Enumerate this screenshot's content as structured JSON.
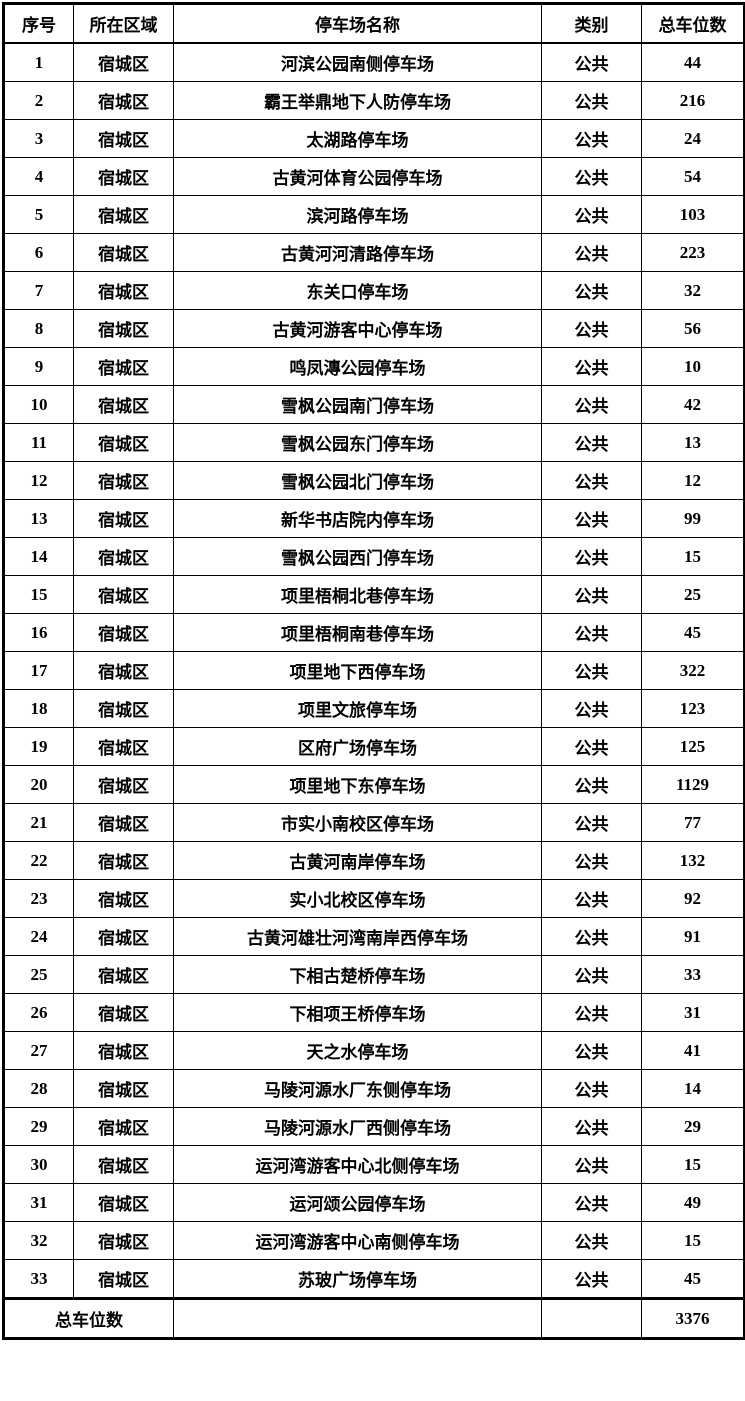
{
  "table": {
    "columns": [
      "序号",
      "所在区域",
      "停车场名称",
      "类别",
      "总车位数"
    ],
    "rows": [
      {
        "no": "1",
        "district": "宿城区",
        "name": "河滨公园南侧停车场",
        "category": "公共",
        "spaces": "44"
      },
      {
        "no": "2",
        "district": "宿城区",
        "name": "霸王举鼎地下人防停车场",
        "category": "公共",
        "spaces": "216"
      },
      {
        "no": "3",
        "district": "宿城区",
        "name": "太湖路停车场",
        "category": "公共",
        "spaces": "24"
      },
      {
        "no": "4",
        "district": "宿城区",
        "name": "古黄河体育公园停车场",
        "category": "公共",
        "spaces": "54"
      },
      {
        "no": "5",
        "district": "宿城区",
        "name": "滨河路停车场",
        "category": "公共",
        "spaces": "103"
      },
      {
        "no": "6",
        "district": "宿城区",
        "name": "古黄河河清路停车场",
        "category": "公共",
        "spaces": "223"
      },
      {
        "no": "7",
        "district": "宿城区",
        "name": "东关口停车场",
        "category": "公共",
        "spaces": "32"
      },
      {
        "no": "8",
        "district": "宿城区",
        "name": "古黄河游客中心停车场",
        "category": "公共",
        "spaces": "56"
      },
      {
        "no": "9",
        "district": "宿城区",
        "name": "鸣凤漙公园停车场",
        "category": "公共",
        "spaces": "10"
      },
      {
        "no": "10",
        "district": "宿城区",
        "name": "雪枫公园南门停车场",
        "category": "公共",
        "spaces": "42"
      },
      {
        "no": "11",
        "district": "宿城区",
        "name": "雪枫公园东门停车场",
        "category": "公共",
        "spaces": "13"
      },
      {
        "no": "12",
        "district": "宿城区",
        "name": "雪枫公园北门停车场",
        "category": "公共",
        "spaces": "12"
      },
      {
        "no": "13",
        "district": "宿城区",
        "name": "新华书店院内停车场",
        "category": "公共",
        "spaces": "99"
      },
      {
        "no": "14",
        "district": "宿城区",
        "name": "雪枫公园西门停车场",
        "category": "公共",
        "spaces": "15"
      },
      {
        "no": "15",
        "district": "宿城区",
        "name": "项里梧桐北巷停车场",
        "category": "公共",
        "spaces": "25"
      },
      {
        "no": "16",
        "district": "宿城区",
        "name": "项里梧桐南巷停车场",
        "category": "公共",
        "spaces": "45"
      },
      {
        "no": "17",
        "district": "宿城区",
        "name": "项里地下西停车场",
        "category": "公共",
        "spaces": "322"
      },
      {
        "no": "18",
        "district": "宿城区",
        "name": "项里文旅停车场",
        "category": "公共",
        "spaces": "123"
      },
      {
        "no": "19",
        "district": "宿城区",
        "name": "区府广场停车场",
        "category": "公共",
        "spaces": "125"
      },
      {
        "no": "20",
        "district": "宿城区",
        "name": "项里地下东停车场",
        "category": "公共",
        "spaces": "1129"
      },
      {
        "no": "21",
        "district": "宿城区",
        "name": "市实小南校区停车场",
        "category": "公共",
        "spaces": "77"
      },
      {
        "no": "22",
        "district": "宿城区",
        "name": "古黄河南岸停车场",
        "category": "公共",
        "spaces": "132"
      },
      {
        "no": "23",
        "district": "宿城区",
        "name": "实小北校区停车场",
        "category": "公共",
        "spaces": "92"
      },
      {
        "no": "24",
        "district": "宿城区",
        "name": "古黄河雄壮河湾南岸西停车场",
        "category": "公共",
        "spaces": "91"
      },
      {
        "no": "25",
        "district": "宿城区",
        "name": "下相古楚桥停车场",
        "category": "公共",
        "spaces": "33"
      },
      {
        "no": "26",
        "district": "宿城区",
        "name": "下相项王桥停车场",
        "category": "公共",
        "spaces": "31"
      },
      {
        "no": "27",
        "district": "宿城区",
        "name": "天之水停车场",
        "category": "公共",
        "spaces": "41"
      },
      {
        "no": "28",
        "district": "宿城区",
        "name": "马陵河源水厂东侧停车场",
        "category": "公共",
        "spaces": "14"
      },
      {
        "no": "29",
        "district": "宿城区",
        "name": "马陵河源水厂西侧停车场",
        "category": "公共",
        "spaces": "29"
      },
      {
        "no": "30",
        "district": "宿城区",
        "name": "运河湾游客中心北侧停车场",
        "category": "公共",
        "spaces": "15"
      },
      {
        "no": "31",
        "district": "宿城区",
        "name": "运河颂公园停车场",
        "category": "公共",
        "spaces": "49"
      },
      {
        "no": "32",
        "district": "宿城区",
        "name": "运河湾游客中心南侧停车场",
        "category": "公共",
        "spaces": "15"
      },
      {
        "no": "33",
        "district": "宿城区",
        "name": "苏玻广场停车场",
        "category": "公共",
        "spaces": "45"
      }
    ],
    "footer": {
      "label": "总车位数",
      "total": "3376"
    }
  }
}
